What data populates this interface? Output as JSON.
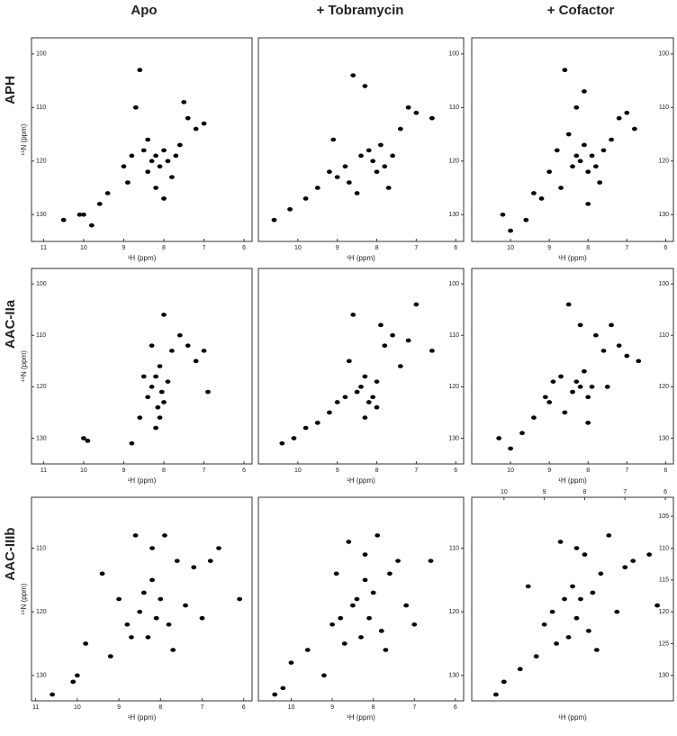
{
  "columns": [
    "Apo",
    "+ Tobramycin",
    "+ Cofactor"
  ],
  "rows": [
    "APH",
    "AAC-IIa",
    "AAC-IIIb"
  ],
  "chart_data": [
    {
      "type": "scatter",
      "xlabel": "¹H (ppm)",
      "ylabel": "¹⁵N (ppm)",
      "xlim": [
        11.3,
        5.8
      ],
      "ylim": [
        135,
        97
      ],
      "xticks": [
        11,
        10,
        9,
        8,
        7,
        6
      ],
      "yticks": [
        100,
        110,
        120,
        130
      ],
      "yaxis_side": "left",
      "xaxis_side": "bottom",
      "color": "#000000",
      "x": [
        10.5,
        10.1,
        10.0,
        9.8,
        9.4,
        9.0,
        8.8,
        8.6,
        8.5,
        8.4,
        8.3,
        8.2,
        8.1,
        8.0,
        7.9,
        7.8,
        7.6,
        7.4,
        7.2,
        7.0,
        8.7,
        8.2,
        7.7,
        9.6,
        8.9,
        8.0,
        7.5,
        8.4
      ],
      "y": [
        131,
        130,
        130,
        132,
        126,
        121,
        119,
        103,
        118,
        122,
        120,
        119,
        121,
        118,
        120,
        123,
        117,
        112,
        114,
        113,
        110,
        125,
        119,
        128,
        124,
        127,
        109,
        116
      ]
    },
    {
      "type": "scatter",
      "xlabel": "¹H (ppm)",
      "xlim": [
        11,
        5.8
      ],
      "ylim": [
        135,
        97
      ],
      "xticks": [
        10,
        9,
        8,
        7,
        6
      ],
      "yticks": [
        100,
        110,
        120,
        130
      ],
      "yaxis_side": "right",
      "xaxis_side": "bottom",
      "color": "#000000",
      "x": [
        10.6,
        10.2,
        9.8,
        9.5,
        9.2,
        9.0,
        8.8,
        8.6,
        8.4,
        8.2,
        8.1,
        8.0,
        7.9,
        7.8,
        7.6,
        7.4,
        7.2,
        7.0,
        6.6,
        8.3,
        8.7,
        9.1,
        7.7,
        8.5
      ],
      "y": [
        131,
        129,
        127,
        125,
        122,
        123,
        121,
        104,
        119,
        118,
        120,
        122,
        117,
        121,
        119,
        114,
        110,
        111,
        112,
        106,
        124,
        116,
        125,
        126
      ]
    },
    {
      "type": "scatter",
      "xlabel": "¹H (ppm)",
      "xlim": [
        11,
        5.8
      ],
      "ylim": [
        135,
        97
      ],
      "xticks": [
        10,
        9,
        8,
        7,
        6
      ],
      "yticks": [
        100,
        110,
        120,
        130
      ],
      "yaxis_side": "right",
      "xaxis_side": "bottom",
      "color": "#000000",
      "x": [
        10.2,
        10.0,
        9.6,
        9.2,
        9.0,
        8.8,
        8.6,
        8.5,
        8.4,
        8.3,
        8.2,
        8.1,
        8.0,
        7.9,
        7.8,
        7.6,
        7.4,
        7.2,
        7.0,
        6.8,
        8.7,
        8.1,
        7.7,
        9.4,
        8.3,
        8.0
      ],
      "y": [
        130,
        133,
        131,
        127,
        122,
        118,
        103,
        115,
        121,
        119,
        120,
        117,
        122,
        119,
        121,
        118,
        116,
        112,
        111,
        114,
        125,
        107,
        124,
        126,
        110,
        128
      ]
    },
    {
      "type": "scatter",
      "xlabel": "¹H (ppm)",
      "ylabel": "¹⁵N (ppm)",
      "xlim": [
        11.3,
        5.8
      ],
      "ylim": [
        135,
        97
      ],
      "xticks": [
        11,
        10,
        9,
        8,
        7,
        6
      ],
      "yticks": [
        100,
        110,
        120,
        130
      ],
      "yaxis_side": "left",
      "xaxis_side": "bottom",
      "color": "#000000",
      "x": [
        10.0,
        9.9,
        8.8,
        8.6,
        8.4,
        8.3,
        8.2,
        8.15,
        8.1,
        8.05,
        8.0,
        7.9,
        7.8,
        7.6,
        7.4,
        7.2,
        7.0,
        8.2,
        8.3,
        8.1,
        8.0,
        8.5,
        6.9
      ],
      "y": [
        130,
        130.5,
        131,
        126,
        122,
        120,
        118,
        124,
        116,
        121,
        106,
        119,
        113,
        110,
        112,
        115,
        113,
        128,
        112,
        126,
        123,
        118,
        121
      ]
    },
    {
      "type": "scatter",
      "xlabel": "¹H (ppm)",
      "xlim": [
        11,
        5.8
      ],
      "ylim": [
        135,
        97
      ],
      "xticks": [
        10,
        9,
        8,
        7,
        6
      ],
      "yticks": [
        100,
        110,
        120,
        130
      ],
      "yaxis_side": "right",
      "xaxis_side": "bottom",
      "color": "#000000",
      "x": [
        10.4,
        10.1,
        9.8,
        9.5,
        9.2,
        9.0,
        8.8,
        8.6,
        8.5,
        8.4,
        8.3,
        8.2,
        8.1,
        8.0,
        7.8,
        7.6,
        7.4,
        7.2,
        7.0,
        6.6,
        8.7,
        7.9,
        8.3,
        8.0
      ],
      "y": [
        131,
        130,
        128,
        127,
        125,
        123,
        122,
        106,
        121,
        120,
        118,
        123,
        122,
        119,
        112,
        110,
        116,
        111,
        104,
        113,
        115,
        108,
        126,
        124
      ]
    },
    {
      "type": "scatter",
      "xlabel": "¹H (ppm)",
      "xlim": [
        11,
        5.8
      ],
      "ylim": [
        135,
        97
      ],
      "xticks": [
        10,
        9,
        8,
        7,
        6
      ],
      "yticks": [
        100,
        110,
        120,
        130
      ],
      "yaxis_side": "right",
      "xaxis_side": "bottom",
      "color": "#000000",
      "x": [
        10.3,
        10.0,
        9.7,
        9.4,
        9.1,
        8.9,
        8.7,
        8.5,
        8.4,
        8.3,
        8.2,
        8.1,
        8.0,
        7.9,
        7.8,
        7.6,
        7.4,
        7.2,
        7.0,
        6.7,
        8.6,
        8.0,
        7.5,
        9.0,
        8.2
      ],
      "y": [
        130,
        132,
        129,
        126,
        122,
        119,
        118,
        104,
        121,
        119,
        120,
        117,
        122,
        120,
        110,
        113,
        108,
        112,
        114,
        115,
        125,
        127,
        120,
        123,
        108
      ]
    },
    {
      "type": "scatter",
      "xlabel": "¹H (ppm)",
      "ylabel": "¹⁵N (ppm)",
      "xlim": [
        11.1,
        5.8
      ],
      "ylim": [
        134,
        102
      ],
      "xticks": [
        11,
        10,
        9,
        8,
        7,
        6
      ],
      "yticks": [
        110,
        120,
        130
      ],
      "yaxis_side": "left",
      "xaxis_side": "bottom",
      "color": "#000000",
      "x": [
        10.6,
        10.1,
        10.0,
        9.8,
        9.2,
        9.0,
        8.8,
        8.6,
        8.5,
        8.4,
        8.3,
        8.2,
        8.1,
        8.0,
        7.9,
        7.8,
        7.6,
        7.4,
        7.2,
        7.0,
        6.8,
        6.6,
        6.1,
        8.7,
        8.2,
        7.7,
        9.4
      ],
      "y": [
        133,
        131,
        130,
        125,
        127,
        118,
        122,
        108,
        120,
        117,
        124,
        115,
        121,
        118,
        108,
        122,
        112,
        119,
        113,
        121,
        112,
        110,
        118,
        124,
        110,
        126,
        114
      ]
    },
    {
      "type": "scatter",
      "xlabel": "¹H (ppm)",
      "xlim": [
        10.8,
        5.8
      ],
      "ylim": [
        134,
        102
      ],
      "xticks": [
        10,
        9,
        8,
        7,
        6
      ],
      "yticks": [
        110,
        120,
        130
      ],
      "yaxis_side": "right",
      "xaxis_side": "bottom",
      "color": "#000000",
      "x": [
        10.4,
        10.2,
        10.0,
        9.6,
        9.2,
        9.0,
        8.8,
        8.6,
        8.5,
        8.4,
        8.3,
        8.2,
        8.1,
        8.0,
        7.9,
        7.8,
        7.6,
        7.4,
        7.2,
        7.0,
        6.6,
        8.7,
        8.2,
        7.7,
        8.9
      ],
      "y": [
        133,
        132,
        128,
        126,
        130,
        122,
        121,
        109,
        119,
        118,
        124,
        115,
        121,
        117,
        108,
        123,
        114,
        112,
        119,
        122,
        112,
        125,
        111,
        126,
        114
      ]
    },
    {
      "type": "scatter",
      "xlabel": "¹H (ppm)",
      "xlim": [
        10.8,
        5.8
      ],
      "ylim": [
        134,
        102
      ],
      "xticks": [
        10,
        9,
        8,
        7,
        6
      ],
      "yticks": [
        105,
        110,
        115,
        120,
        125,
        130
      ],
      "yaxis_side": "right",
      "xaxis_side": "top",
      "color": "#000000",
      "x": [
        10.2,
        10.0,
        9.6,
        9.2,
        9.0,
        8.8,
        8.6,
        8.5,
        8.4,
        8.3,
        8.2,
        8.1,
        8.0,
        7.9,
        7.8,
        7.6,
        7.4,
        7.2,
        7.0,
        6.8,
        6.2,
        8.7,
        8.2,
        7.7,
        9.4,
        6.4
      ],
      "y": [
        133,
        131,
        129,
        127,
        122,
        120,
        109,
        118,
        124,
        116,
        121,
        118,
        111,
        123,
        117,
        114,
        108,
        120,
        113,
        112,
        119,
        125,
        110,
        126,
        116,
        111
      ]
    }
  ]
}
